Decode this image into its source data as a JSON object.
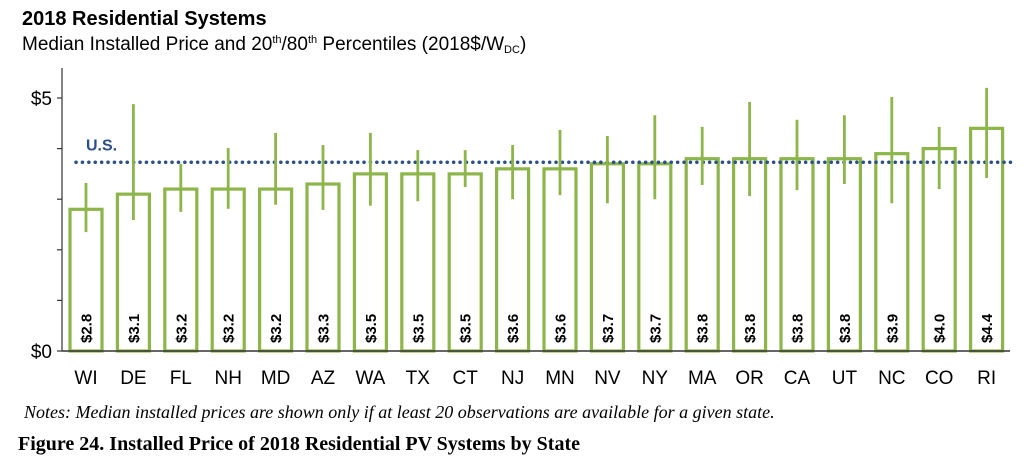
{
  "chart_data": {
    "type": "bar",
    "title": "2018 Residential Systems",
    "subtitle": {
      "pre": "Median Installed  Price and 20",
      "sup1": "th",
      "mid": "/80",
      "sup2": "th",
      "post": " Percentiles (2018$/W",
      "sub": "DC",
      "end": ")"
    },
    "categories": [
      "WI",
      "DE",
      "FL",
      "NH",
      "MD",
      "AZ",
      "WA",
      "TX",
      "CT",
      "NJ",
      "MN",
      "NV",
      "NY",
      "MA",
      "OR",
      "CA",
      "UT",
      "NC",
      "CO",
      "RI"
    ],
    "values": [
      2.8,
      3.1,
      3.2,
      3.2,
      3.2,
      3.3,
      3.5,
      3.5,
      3.5,
      3.6,
      3.6,
      3.7,
      3.7,
      3.8,
      3.8,
      3.8,
      3.8,
      3.9,
      4.0,
      4.4
    ],
    "data_labels": [
      "$2.8",
      "$3.1",
      "$3.2",
      "$3.2",
      "$3.2",
      "$3.3",
      "$3.5",
      "$3.5",
      "$3.5",
      "$3.6",
      "$3.6",
      "$3.7",
      "$3.7",
      "$3.8",
      "$3.8",
      "$3.8",
      "$3.8",
      "$3.9",
      "$4.0",
      "$4.4"
    ],
    "p20": [
      2.35,
      2.59,
      2.75,
      2.81,
      2.89,
      2.79,
      2.87,
      2.96,
      3.24,
      3.0,
      3.08,
      2.92,
      3.0,
      3.28,
      3.06,
      3.18,
      3.3,
      2.92,
      3.2,
      3.42
    ],
    "p80": [
      3.32,
      4.88,
      3.7,
      4.01,
      4.31,
      4.07,
      4.31,
      3.97,
      3.97,
      4.07,
      4.37,
      4.25,
      4.66,
      4.43,
      4.92,
      4.57,
      4.66,
      5.02,
      4.43,
      5.2
    ],
    "reference_line": {
      "label": "U.S.",
      "value": 3.73,
      "color": "#2a4f8a",
      "style": "dotted"
    },
    "ylim": [
      0,
      5
    ],
    "yticks": [
      0,
      1,
      2,
      3,
      4,
      5
    ],
    "ytick_labels": {
      "0": "$0",
      "5": "$5"
    },
    "xlabel": "",
    "ylabel": "",
    "grid": false,
    "bar_color": "#8db64a"
  },
  "notes": "Notes: Median installed prices are shown only if at least 20 observations are available for a given state.",
  "caption": "Figure 24. Installed Price of 2018 Residential PV Systems by State"
}
